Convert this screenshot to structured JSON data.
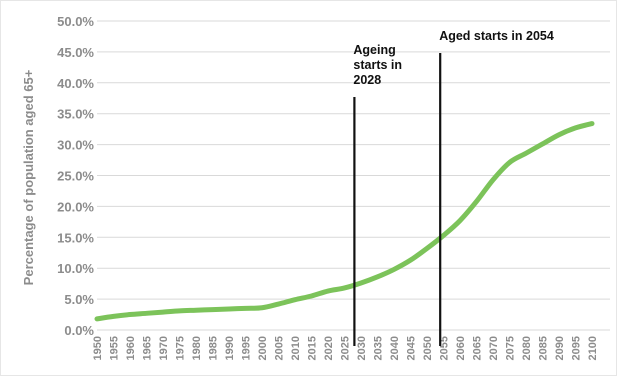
{
  "chart_data": {
    "type": "line",
    "xlabel": "",
    "ylabel": "Percentage of population aged 65+",
    "x": [
      1950,
      1955,
      1960,
      1965,
      1970,
      1975,
      1980,
      1985,
      1990,
      1995,
      2000,
      2005,
      2010,
      2015,
      2020,
      2025,
      2030,
      2035,
      2040,
      2045,
      2050,
      2055,
      2060,
      2065,
      2070,
      2075,
      2080,
      2085,
      2090,
      2095,
      2100
    ],
    "xlim": [
      1950,
      2100
    ],
    "ylim": [
      0,
      50
    ],
    "y_ticks": [
      "0.0%",
      "5.0%",
      "10.0%",
      "15.0%",
      "20.0%",
      "25.0%",
      "30.0%",
      "35.0%",
      "40.0%",
      "45.0%",
      "50.0%"
    ],
    "y_tick_values": [
      0,
      5,
      10,
      15,
      20,
      25,
      30,
      35,
      40,
      45,
      50
    ],
    "grid": "horizontal",
    "legend": "none",
    "series": [
      {
        "color": "#7cc35a",
        "values": [
          1.8,
          2.2,
          2.5,
          2.7,
          2.9,
          3.1,
          3.2,
          3.3,
          3.4,
          3.5,
          3.6,
          4.2,
          4.9,
          5.5,
          6.3,
          6.8,
          7.6,
          8.6,
          9.8,
          11.3,
          13.2,
          15.3,
          17.7,
          20.8,
          24.3,
          27.1,
          28.6,
          30.1,
          31.6,
          32.7,
          33.4
        ]
      }
    ],
    "annotations": [
      {
        "x": 2028,
        "lines": [
          "Ageing",
          "starts in",
          "2028"
        ]
      },
      {
        "x": 2054,
        "lines": [
          "Aged starts in 2054"
        ]
      }
    ],
    "colors": {
      "line": "#7cc35a",
      "grid": "#d9d9d9",
      "marker": "#111111",
      "tick_text": "#8c8c8c"
    }
  }
}
